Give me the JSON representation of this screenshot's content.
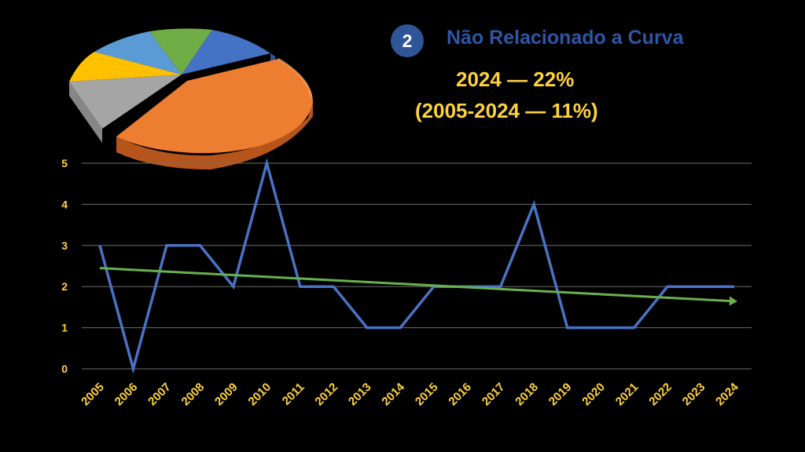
{
  "header": {
    "badge_number": "2",
    "title": "Não Relacionado a Curva",
    "stat_current": "2024 — 22%",
    "stat_range": "(2005-2024 — 11%)"
  },
  "colors": {
    "background": "#000000",
    "series_line": "#4a72c4",
    "trend_line": "#6ab04c",
    "label_yellow": "#ffd23f",
    "title_blue": "#2f55a4",
    "badge_blue": "#2e5597",
    "gridline": "#6f6f6f"
  },
  "pie_decoration": {
    "type": "pie",
    "style": "3d",
    "slice_colors": [
      "#ed7d31",
      "#a5a5a5",
      "#ffc000",
      "#5b9bd5",
      "#70ad47",
      "#4472c4"
    ],
    "exploded_slice": "orange"
  },
  "chart_data": {
    "type": "line",
    "title": "",
    "xlabel": "",
    "ylabel": "",
    "ylim": [
      0,
      5
    ],
    "yticks": [
      "0",
      "1",
      "2",
      "3",
      "4",
      "5"
    ],
    "grid": true,
    "legend": "none",
    "categories": [
      "2005",
      "2006",
      "2007",
      "2008",
      "2009",
      "2010",
      "2011",
      "2012",
      "2013",
      "2014",
      "2015",
      "2016",
      "2017",
      "2018",
      "2019",
      "2020",
      "2021",
      "2022",
      "2023",
      "2024"
    ],
    "series": [
      {
        "values": [
          3,
          0,
          3,
          3,
          2,
          5,
          2,
          2,
          1,
          1,
          2,
          2,
          2,
          4,
          1,
          1,
          1,
          2,
          2,
          2
        ],
        "color": "#4a72c4"
      }
    ],
    "trendline": {
      "type": "linear",
      "start_value": 2.45,
      "end_value": 1.65,
      "color": "#6ab04c",
      "arrow": true
    }
  }
}
